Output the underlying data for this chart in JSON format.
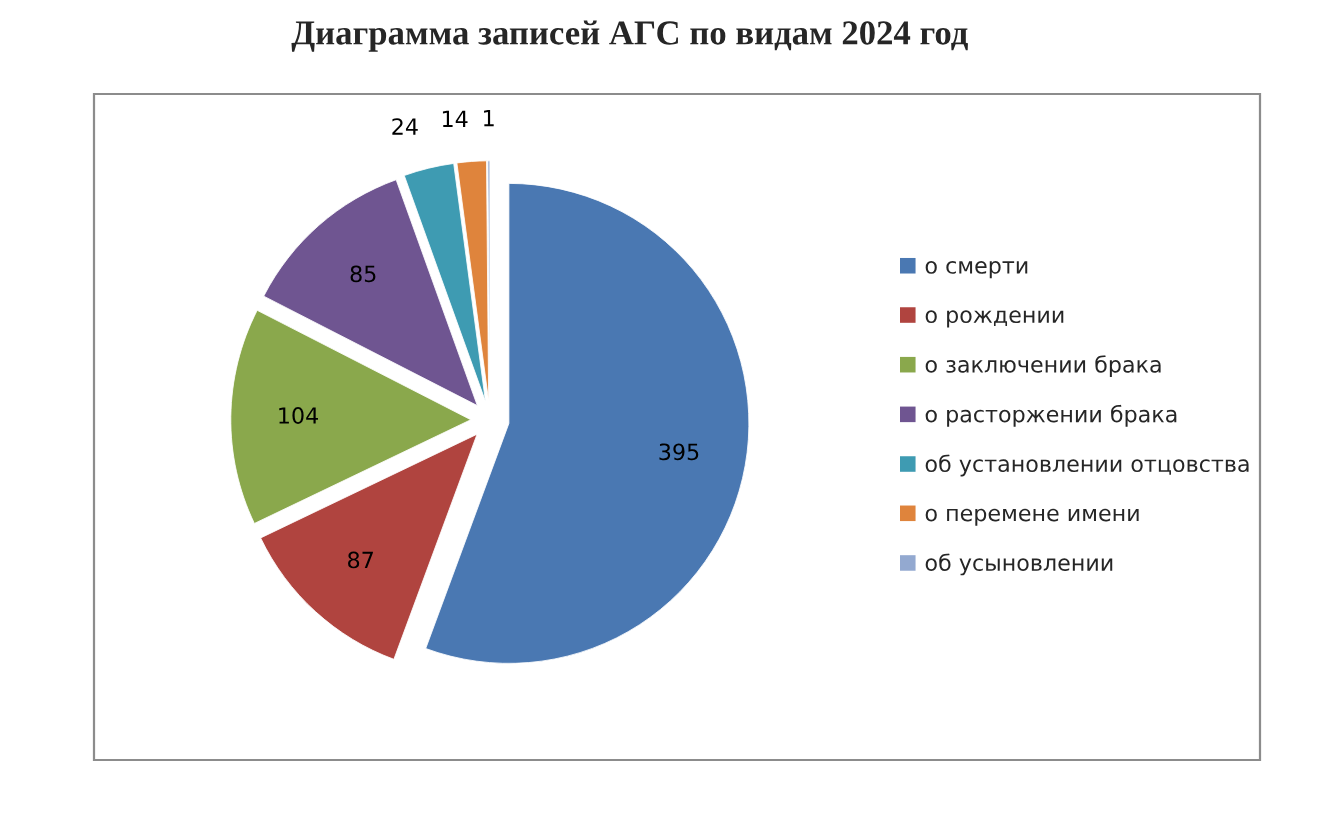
{
  "chart_data": {
    "type": "pie",
    "title": "Диаграмма записей АГС по видам 2024 год",
    "categories": [
      "о смерти",
      "о рождении",
      "о заключении брака",
      "о расторжении брака",
      "об установлении отцовства",
      "о перемене имени",
      "об усыновлении"
    ],
    "values": [
      395,
      87,
      104,
      85,
      24,
      14,
      1
    ],
    "colors": [
      "#4a78b2",
      "#b0443f",
      "#8aa84c",
      "#6f5591",
      "#3e9bb2",
      "#df843c",
      "#93a9d0"
    ],
    "data_labels": true,
    "legend": "right"
  }
}
